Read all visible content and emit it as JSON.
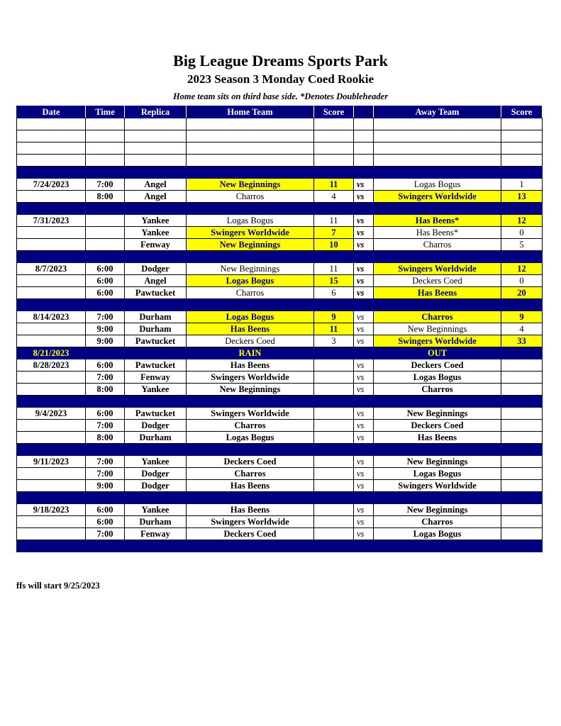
{
  "title": "Big League Dreams Sports Park",
  "subtitle": "2023 Season 3 Monday Coed Rookie",
  "note": "Home team sits on third base side.  *Denotes Doubleheader",
  "colors": {
    "header": "#000080",
    "highlight": "#ffff00"
  },
  "columns": [
    "Date",
    "Time",
    "Replica",
    "Home Team",
    "Score",
    "",
    "Away Team",
    "Score"
  ],
  "rows": [
    {
      "type": "blank"
    },
    {
      "type": "blank"
    },
    {
      "type": "blank"
    },
    {
      "type": "blank"
    },
    {
      "type": "sep"
    },
    {
      "type": "game",
      "date": "7/24/2023",
      "time": "7:00",
      "replica": "Angel",
      "home": "New Beginnings",
      "hs": "11",
      "vs": "vs",
      "away": "Logas Bogus",
      "as": "1",
      "win": "home"
    },
    {
      "type": "game",
      "date": "",
      "time": "8:00",
      "replica": "Angel",
      "home": "Charros",
      "hs": "4",
      "vs": "vs",
      "away": "Swingers Worldwide",
      "as": "13",
      "win": "away"
    },
    {
      "type": "sep"
    },
    {
      "type": "game",
      "date": "7/31/2023",
      "time": "",
      "replica": "Yankee",
      "home": "Logas Bogus",
      "hs": "11",
      "vs": "vs",
      "away": "Has Beens*",
      "as": "12",
      "win": "away"
    },
    {
      "type": "game",
      "date": "",
      "time": "",
      "replica": "Yankee",
      "home": "Swingers Worldwide",
      "hs": "7",
      "vs": "vs",
      "away": "Has Beens*",
      "as": "0",
      "win": "home"
    },
    {
      "type": "game",
      "date": "",
      "time": "",
      "replica": "Fenway",
      "home": "New Beginnings",
      "hs": "10",
      "vs": "vs",
      "away": "Charros",
      "as": "5",
      "win": "home"
    },
    {
      "type": "sep"
    },
    {
      "type": "game",
      "date": "8/7/2023",
      "time": "6:00",
      "replica": "Dodger",
      "home": "New Beginnings",
      "hs": "11",
      "vs": "vs",
      "away": "Swingers Worldwide",
      "as": "12",
      "win": "away"
    },
    {
      "type": "game",
      "date": "",
      "time": "6:00",
      "replica": "Angel",
      "home": "Logas Bogus",
      "hs": "15",
      "vs": "vs",
      "away": "Deckers Coed",
      "as": "0",
      "win": "home"
    },
    {
      "type": "game",
      "date": "",
      "time": "6:00",
      "replica": "Pawtucket",
      "home": "Charros",
      "hs": "6",
      "vs": "vs",
      "away": "Has Beens",
      "as": "20",
      "win": "away"
    },
    {
      "type": "sep"
    },
    {
      "type": "game",
      "date": "8/14/2023",
      "time": "7:00",
      "replica": "Durham",
      "home": "Logas Bogus",
      "hs": "9",
      "vs": "vs",
      "away": "Charros",
      "as": "9",
      "win": "both"
    },
    {
      "type": "game",
      "date": "",
      "time": "9:00",
      "replica": "Durham",
      "home": "Has Beens",
      "hs": "11",
      "vs": "vs",
      "away": "New Beginnings",
      "as": "4",
      "win": "home"
    },
    {
      "type": "game",
      "date": "",
      "time": "9:00",
      "replica": "Pawtucket",
      "home": "Deckers Coed",
      "hs": "3",
      "vs": "vs",
      "away": "Swingers Worldwide",
      "as": "33",
      "win": "away"
    },
    {
      "type": "rain",
      "date": "8/21/2023",
      "home": "RAIN",
      "away": "OUT"
    },
    {
      "type": "game",
      "date": "8/28/2023",
      "time": "6:00",
      "replica": "Pawtucket",
      "home": "Has Beens",
      "hs": "",
      "vs": "vs",
      "away": "Deckers Coed",
      "as": ""
    },
    {
      "type": "game",
      "date": "",
      "time": "7:00",
      "replica": "Fenway",
      "home": "Swingers Worldwide",
      "hs": "",
      "vs": "vs",
      "away": "Logas Bogus",
      "as": ""
    },
    {
      "type": "game",
      "date": "",
      "time": "8:00",
      "replica": "Yankee",
      "home": "New Beginnings",
      "hs": "",
      "vs": "vs",
      "away": "Charros",
      "as": ""
    },
    {
      "type": "sep"
    },
    {
      "type": "game",
      "date": "9/4/2023",
      "time": "6:00",
      "replica": "Pawtucket",
      "home": "Swingers Worldwide",
      "hs": "",
      "vs": "vs",
      "away": "New Beginnings",
      "as": ""
    },
    {
      "type": "game",
      "date": "",
      "time": "7:00",
      "replica": "Dodger",
      "home": "Charros",
      "hs": "",
      "vs": "vs",
      "away": "Deckers Coed",
      "as": ""
    },
    {
      "type": "game",
      "date": "",
      "time": "8:00",
      "replica": "Durham",
      "home": "Logas Bogus",
      "hs": "",
      "vs": "vs",
      "away": "Has Beens",
      "as": ""
    },
    {
      "type": "sep"
    },
    {
      "type": "game",
      "date": "9/11/2023",
      "time": "7:00",
      "replica": "Yankee",
      "home": "Deckers Coed",
      "hs": "",
      "vs": "vs",
      "away": "New Beginnings",
      "as": ""
    },
    {
      "type": "game",
      "date": "",
      "time": "7:00",
      "replica": "Dodger",
      "home": "Charros",
      "hs": "",
      "vs": "vs",
      "away": "Logas Bogus",
      "as": ""
    },
    {
      "type": "game",
      "date": "",
      "time": "9:00",
      "replica": "Dodger",
      "home": "Has Beens",
      "hs": "",
      "vs": "vs",
      "away": "Swingers Worldwide",
      "as": ""
    },
    {
      "type": "sep"
    },
    {
      "type": "game",
      "date": "9/18/2023",
      "time": "6:00",
      "replica": "Yankee",
      "home": "Has Beens",
      "hs": "",
      "vs": "vs",
      "away": "New Beginnings",
      "as": ""
    },
    {
      "type": "game",
      "date": "",
      "time": "6:00",
      "replica": "Durham",
      "home": "Swingers Worldwide",
      "hs": "",
      "vs": "vs",
      "away": "Charros",
      "as": ""
    },
    {
      "type": "game",
      "date": "",
      "time": "7:00",
      "replica": "Fenway",
      "home": "Deckers Coed",
      "hs": "",
      "vs": "vs",
      "away": "Logas Bogus",
      "as": ""
    },
    {
      "type": "sep"
    }
  ],
  "footer": "ffs will start 9/25/2023"
}
